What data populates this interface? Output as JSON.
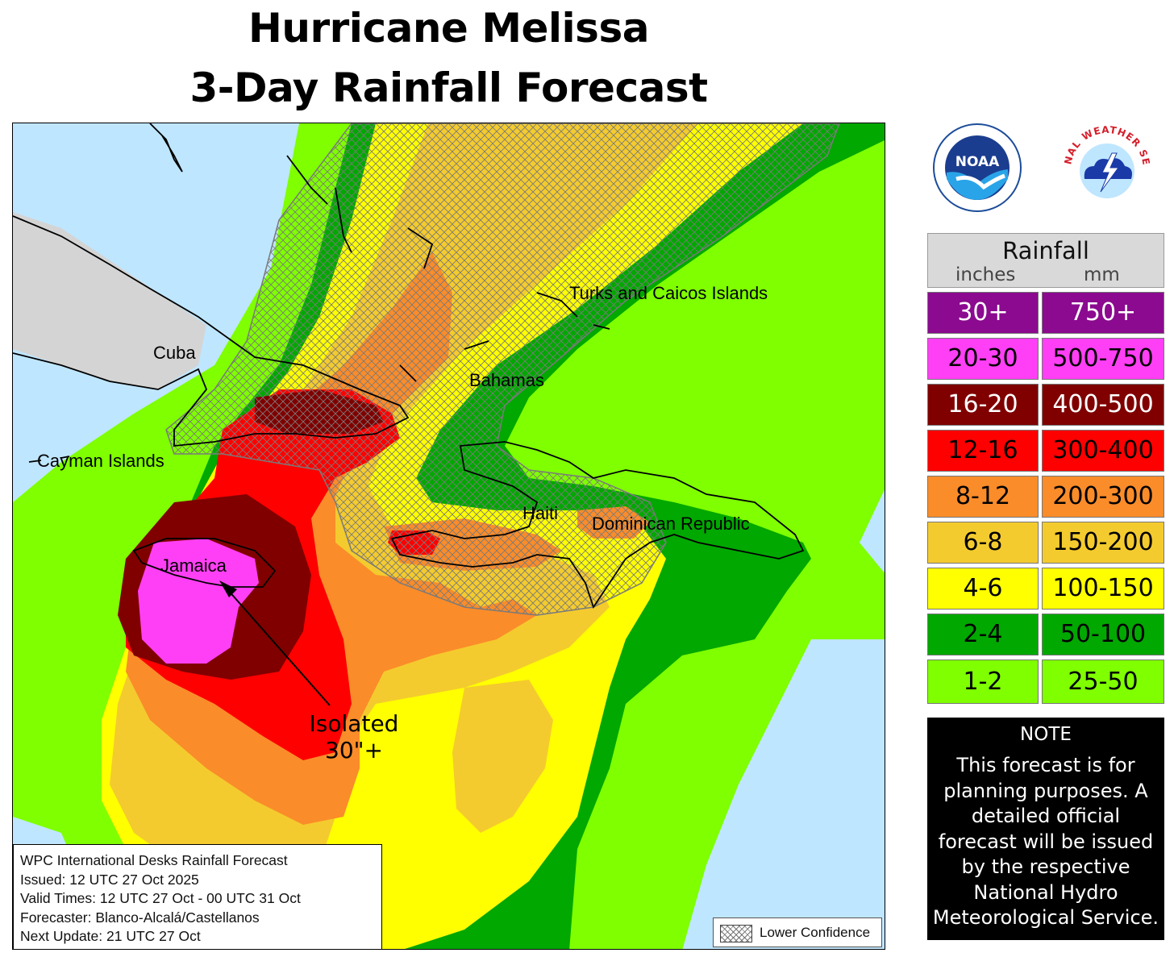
{
  "title": {
    "line1": "Hurricane Melissa",
    "line2": "3-Day Rainfall Forecast"
  },
  "map": {
    "labels": {
      "cuba": "Cuba",
      "cayman": "Cayman Islands",
      "jamaica": "Jamaica",
      "bahamas": "Bahamas",
      "turks_caicos": "Turks and Caicos Islands",
      "haiti": "Haiti",
      "dominican_republic": "Dominican Republic"
    },
    "annotation": {
      "line1": "Isolated",
      "line2": "30\"+"
    }
  },
  "info": {
    "line1": "WPC International Desks Rainfall Forecast",
    "line2": "Issued: 12 UTC 27 Oct 2025",
    "line3": "Valid Times: 12 UTC 27 Oct - 00 UTC 31 Oct",
    "line4": "Forecaster: Blanco-Alcalá/Castellanos",
    "line5": "Next Update: 21 UTC 27 Oct"
  },
  "confidence_legend": {
    "label": "Lower Confidence"
  },
  "logos": {
    "noaa": {
      "text": "NOAA"
    },
    "nws": {
      "text": "NATIONAL WEATHER SERVICE"
    }
  },
  "legend": {
    "title": "Rainfall",
    "units_inches": "inches",
    "units_mm": "mm",
    "rows": [
      {
        "inches": "30+",
        "mm": "750+",
        "color": "#8b0a8f",
        "text_color": "#ffffff"
      },
      {
        "inches": "20-30",
        "mm": "500-750",
        "color": "#ff3ff5",
        "text_color": "#000000"
      },
      {
        "inches": "16-20",
        "mm": "400-500",
        "color": "#800000",
        "text_color": "#ffffff"
      },
      {
        "inches": "12-16",
        "mm": "300-400",
        "color": "#ff0000",
        "text_color": "#000000"
      },
      {
        "inches": "8-12",
        "mm": "200-300",
        "color": "#fa8c2a",
        "text_color": "#000000"
      },
      {
        "inches": "6-8",
        "mm": "150-200",
        "color": "#f4cb2e",
        "text_color": "#000000"
      },
      {
        "inches": "4-6",
        "mm": "100-150",
        "color": "#ffff00",
        "text_color": "#000000"
      },
      {
        "inches": "2-4",
        "mm": "50-100",
        "color": "#00a800",
        "text_color": "#000000"
      },
      {
        "inches": "1-2",
        "mm": "25-50",
        "color": "#7fff00",
        "text_color": "#000000"
      }
    ]
  },
  "note": {
    "title": "NOTE",
    "text": "This forecast is for planning purposes. A detailed official forecast will be issued by the respective National Hydro Meteorological Service."
  }
}
